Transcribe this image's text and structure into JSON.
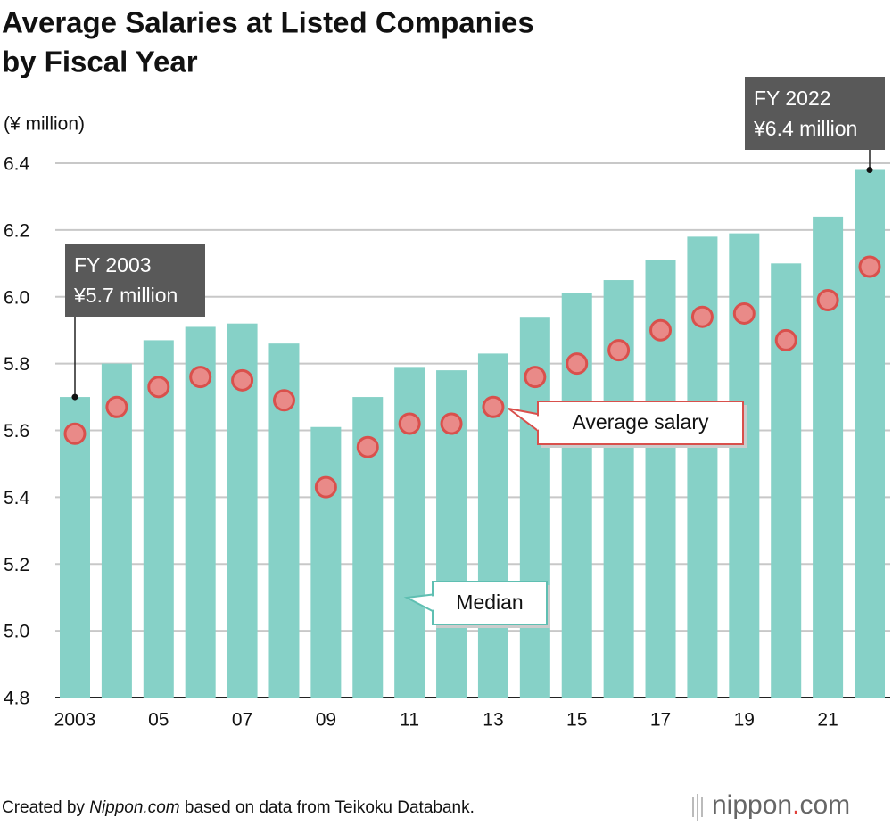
{
  "chart_data": {
    "type": "bar",
    "title": [
      "Average Salaries at Listed Companies",
      "by Fiscal Year"
    ],
    "y_label": "(¥ million)",
    "categories": [
      "2003",
      null,
      "05",
      null,
      "07",
      null,
      "09",
      null,
      "11",
      null,
      "13",
      null,
      "15",
      null,
      "17",
      null,
      "19",
      null,
      "21",
      null
    ],
    "series": [
      {
        "name": "Median",
        "type": "bar",
        "color": "#86d1c7",
        "values": [
          5.7,
          5.8,
          5.87,
          5.91,
          5.92,
          5.86,
          5.61,
          5.7,
          5.79,
          5.78,
          5.83,
          5.94,
          6.01,
          6.05,
          6.11,
          6.18,
          6.19,
          6.1,
          6.24,
          6.38
        ]
      },
      {
        "name": "Average salary",
        "type": "scatter",
        "color": "#e98a88",
        "stroke": "#d9504c",
        "values": [
          5.59,
          5.67,
          5.73,
          5.76,
          5.75,
          5.69,
          5.43,
          5.55,
          5.62,
          5.62,
          5.67,
          5.76,
          5.8,
          5.84,
          5.9,
          5.94,
          5.95,
          5.87,
          5.99,
          6.09
        ]
      }
    ],
    "ylim": [
      4.8,
      6.4
    ],
    "yticks": [
      4.8,
      {
        "value": 5.0,
        "label": "5.0"
      },
      5.2,
      5.4,
      5.6,
      5.8,
      {
        "value": 6.0,
        "label": "6.0"
      },
      6.2,
      6.4
    ],
    "grid": true,
    "annotations": [
      {
        "lines": [
          "FY 2003",
          "¥5.7 million"
        ]
      },
      {
        "lines": [
          "FY 2022",
          "¥6.4 million"
        ]
      }
    ],
    "footer": [
      "Created by ",
      "Nippon.com",
      " based on data from Teikoku Databank."
    ],
    "logo": [
      "nippon",
      ".",
      "com"
    ]
  }
}
